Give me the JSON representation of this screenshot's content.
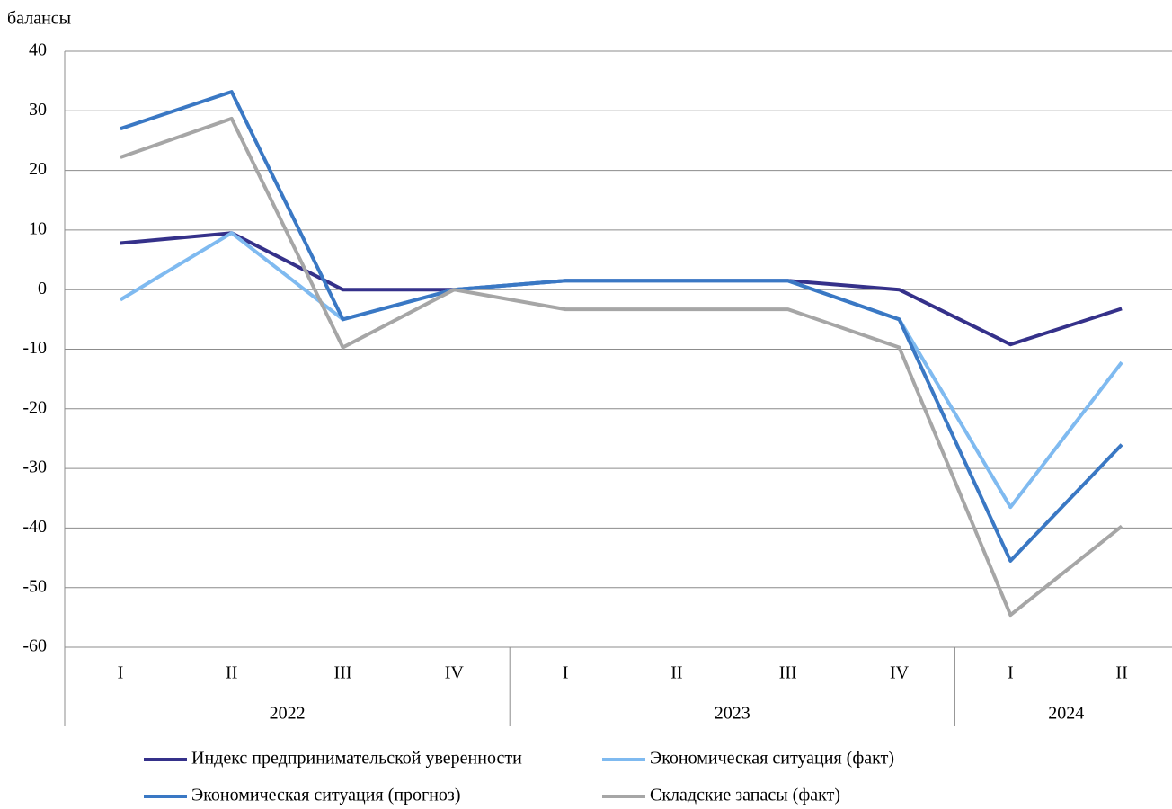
{
  "chart_data": {
    "type": "line",
    "y_axis_label": "балансы",
    "categories": [
      "I",
      "II",
      "III",
      "IV",
      "I",
      "II",
      "III",
      "IV",
      "I",
      "II"
    ],
    "category_groups": [
      {
        "label": "2022",
        "span": 4
      },
      {
        "label": "2023",
        "span": 4
      },
      {
        "label": "2024",
        "span": 2
      }
    ],
    "series": [
      {
        "name": "Индекс предпринимательской уверенности",
        "color": "#35318a",
        "values": [
          7.8,
          9.5,
          0,
          0,
          1.5,
          1.5,
          1.5,
          0,
          -9.2,
          -3.2
        ]
      },
      {
        "name": "Экономическая ситуация (факт)",
        "color": "#7fbaf0",
        "values": [
          -1.7,
          9.5,
          -5,
          0,
          1.5,
          1.5,
          1.5,
          -5,
          -36.5,
          -12.2
        ]
      },
      {
        "name": "Экономическая ситуация (прогноз)",
        "color": "#3a78c4",
        "values": [
          27,
          33.2,
          -5,
          0,
          1.5,
          1.5,
          1.5,
          -5,
          -45.5,
          -26
        ]
      },
      {
        "name": "Складские запасы (факт)",
        "color": "#a6a6a6",
        "values": [
          22.2,
          28.7,
          -9.7,
          0,
          -3.3,
          -3.3,
          -3.3,
          -9.7,
          -54.6,
          -39.7
        ]
      }
    ],
    "ylim": [
      -60,
      40
    ],
    "yticks": [
      -60,
      -50,
      -40,
      -30,
      -20,
      -10,
      0,
      10,
      20,
      30,
      40
    ],
    "grid": true
  }
}
